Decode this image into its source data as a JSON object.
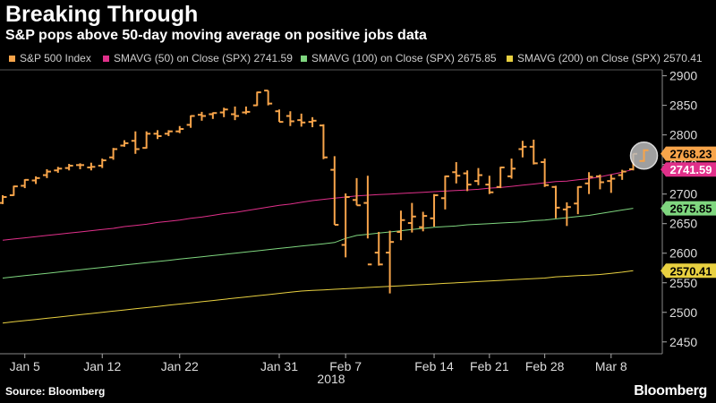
{
  "title": "Breaking Through",
  "subtitle": "S&P pops above 50-day moving average on positive jobs data",
  "source": "Source: Bloomberg",
  "brand": "Bloomberg",
  "legend": [
    {
      "label": "S&P 500 Index",
      "color": "#f7a44a"
    },
    {
      "label": "SMAVG (50) on Close (SPX) 2741.59",
      "color": "#e0308a"
    },
    {
      "label": "SMAVG (100) on Close (SPX) 2675.85",
      "color": "#7fd67f"
    },
    {
      "label": "SMAVG (200) on Close (SPX) 2570.41",
      "color": "#e8d040"
    }
  ],
  "chart_data": {
    "type": "line",
    "title": "Breaking Through",
    "subtitle": "S&P pops above 50-day moving average on positive jobs data",
    "ylim": [
      2430,
      2910
    ],
    "yticks": [
      2450,
      2500,
      2550,
      2600,
      2650,
      2700,
      2750,
      2800,
      2850,
      2900
    ],
    "grid": false,
    "x_tick_labels": [
      "Jan 5",
      "Jan 12",
      "Jan 22",
      "Jan 31",
      "Feb 7",
      "Feb 14",
      "Feb 21",
      "Feb 28",
      "Mar 8"
    ],
    "year_label": "2018",
    "ohlc_series": {
      "name": "S&P 500 Index",
      "color": "#f7a44a",
      "bars": [
        {
          "o": 2685,
          "h": 2698,
          "l": 2683,
          "c": 2695
        },
        {
          "o": 2698,
          "h": 2714,
          "l": 2697,
          "c": 2713
        },
        {
          "o": 2714,
          "h": 2725,
          "l": 2710,
          "c": 2724
        },
        {
          "o": 2723,
          "h": 2730,
          "l": 2717,
          "c": 2727
        },
        {
          "o": 2732,
          "h": 2742,
          "l": 2727,
          "c": 2738
        },
        {
          "o": 2740,
          "h": 2746,
          "l": 2736,
          "c": 2743
        },
        {
          "o": 2744,
          "h": 2751,
          "l": 2740,
          "c": 2748
        },
        {
          "o": 2749,
          "h": 2752,
          "l": 2742,
          "c": 2749
        },
        {
          "o": 2745,
          "h": 2753,
          "l": 2740,
          "c": 2746
        },
        {
          "o": 2748,
          "h": 2760,
          "l": 2744,
          "c": 2757
        },
        {
          "o": 2762,
          "h": 2778,
          "l": 2758,
          "c": 2776
        },
        {
          "o": 2782,
          "h": 2791,
          "l": 2780,
          "c": 2786
        },
        {
          "o": 2790,
          "h": 2806,
          "l": 2768,
          "c": 2776
        },
        {
          "o": 2778,
          "h": 2806,
          "l": 2777,
          "c": 2802
        },
        {
          "o": 2802,
          "h": 2808,
          "l": 2793,
          "c": 2798
        },
        {
          "o": 2802,
          "h": 2808,
          "l": 2798,
          "c": 2806
        },
        {
          "o": 2806,
          "h": 2815,
          "l": 2803,
          "c": 2810
        },
        {
          "o": 2817,
          "h": 2833,
          "l": 2812,
          "c": 2832
        },
        {
          "o": 2834,
          "h": 2839,
          "l": 2824,
          "c": 2832
        },
        {
          "o": 2835,
          "h": 2838,
          "l": 2827,
          "c": 2837
        },
        {
          "o": 2838,
          "h": 2846,
          "l": 2830,
          "c": 2843
        },
        {
          "o": 2835,
          "h": 2848,
          "l": 2825,
          "c": 2832
        },
        {
          "o": 2838,
          "h": 2848,
          "l": 2835,
          "c": 2839
        },
        {
          "o": 2850,
          "h": 2873,
          "l": 2849,
          "c": 2872
        },
        {
          "o": 2875,
          "h": 2875,
          "l": 2850,
          "c": 2853
        },
        {
          "o": 2840,
          "h": 2843,
          "l": 2822,
          "c": 2822
        },
        {
          "o": 2832,
          "h": 2840,
          "l": 2815,
          "c": 2823
        },
        {
          "o": 2825,
          "h": 2836,
          "l": 2814,
          "c": 2821
        },
        {
          "o": 2822,
          "h": 2830,
          "l": 2813,
          "c": 2824
        },
        {
          "o": 2816,
          "h": 2818,
          "l": 2759,
          "c": 2762
        },
        {
          "o": 2741,
          "h": 2764,
          "l": 2648,
          "c": 2648
        },
        {
          "o": 2614,
          "h": 2701,
          "l": 2593,
          "c": 2695
        },
        {
          "o": 2690,
          "h": 2727,
          "l": 2681,
          "c": 2681
        },
        {
          "o": 2685,
          "h": 2731,
          "l": 2625,
          "c": 2581
        },
        {
          "o": 2601,
          "h": 2636,
          "l": 2579,
          "c": 2581
        },
        {
          "o": 2601,
          "h": 2638,
          "l": 2532,
          "c": 2619
        },
        {
          "o": 2636,
          "h": 2672,
          "l": 2622,
          "c": 2656
        },
        {
          "o": 2651,
          "h": 2685,
          "l": 2635,
          "c": 2662
        },
        {
          "o": 2644,
          "h": 2670,
          "l": 2637,
          "c": 2663
        },
        {
          "o": 2659,
          "h": 2700,
          "l": 2645,
          "c": 2698
        },
        {
          "o": 2693,
          "h": 2731,
          "l": 2674,
          "c": 2730
        },
        {
          "o": 2737,
          "h": 2754,
          "l": 2718,
          "c": 2731
        },
        {
          "o": 2735,
          "h": 2740,
          "l": 2705,
          "c": 2716
        },
        {
          "o": 2722,
          "h": 2744,
          "l": 2715,
          "c": 2732
        },
        {
          "o": 2716,
          "h": 2731,
          "l": 2700,
          "c": 2703
        },
        {
          "o": 2712,
          "h": 2746,
          "l": 2710,
          "c": 2745
        },
        {
          "o": 2730,
          "h": 2760,
          "l": 2726,
          "c": 2743
        },
        {
          "o": 2776,
          "h": 2790,
          "l": 2762,
          "c": 2780
        },
        {
          "o": 2780,
          "h": 2792,
          "l": 2750,
          "c": 2752
        },
        {
          "o": 2754,
          "h": 2760,
          "l": 2712,
          "c": 2715
        },
        {
          "o": 2712,
          "h": 2714,
          "l": 2659,
          "c": 2677
        },
        {
          "o": 2674,
          "h": 2686,
          "l": 2646,
          "c": 2678
        },
        {
          "o": 2684,
          "h": 2713,
          "l": 2666,
          "c": 2712
        },
        {
          "o": 2718,
          "h": 2737,
          "l": 2700,
          "c": 2729
        },
        {
          "o": 2730,
          "h": 2733,
          "l": 2708,
          "c": 2720
        },
        {
          "o": 2722,
          "h": 2733,
          "l": 2702,
          "c": 2726
        },
        {
          "o": 2732,
          "h": 2741,
          "l": 2724,
          "c": 2738
        },
        {
          "o": 2742,
          "h": 2768,
          "l": 2740,
          "c": 2768
        }
      ]
    },
    "series": [
      {
        "name": "SMAVG (50) on Close (SPX)",
        "color": "#e0308a",
        "values": [
          2622,
          2624,
          2626,
          2628,
          2630,
          2632,
          2634,
          2636,
          2638,
          2640,
          2642,
          2645,
          2647,
          2649,
          2652,
          2654,
          2656,
          2659,
          2661,
          2664,
          2667,
          2669,
          2672,
          2675,
          2678,
          2681,
          2683,
          2686,
          2689,
          2691,
          2693,
          2695,
          2697,
          2698,
          2699,
          2700,
          2701,
          2702,
          2703,
          2704,
          2705,
          2706,
          2707,
          2708,
          2710,
          2711,
          2713,
          2715,
          2717,
          2719,
          2721,
          2722,
          2724,
          2726,
          2729,
          2733,
          2737,
          2741.59
        ]
      },
      {
        "name": "SMAVG (100) on Close (SPX)",
        "color": "#7fd67f",
        "values": [
          2558,
          2560,
          2562,
          2564,
          2566,
          2568,
          2570,
          2572,
          2574,
          2576,
          2578,
          2580,
          2582,
          2584,
          2586,
          2588,
          2590,
          2592,
          2594,
          2596,
          2598,
          2600,
          2602,
          2604,
          2606,
          2608,
          2610,
          2612,
          2614,
          2616,
          2618,
          2625,
          2630,
          2632,
          2634,
          2636,
          2638,
          2640,
          2642,
          2644,
          2645,
          2646,
          2648,
          2649,
          2650,
          2651,
          2652,
          2653,
          2655,
          2656,
          2658,
          2660,
          2662,
          2664,
          2667,
          2670,
          2673,
          2675.85
        ]
      },
      {
        "name": "SMAVG (200) on Close (SPX)",
        "color": "#e8d040",
        "values": [
          2482,
          2484,
          2486,
          2488,
          2490,
          2492,
          2494,
          2496,
          2498,
          2500,
          2502,
          2504,
          2506,
          2508,
          2510,
          2512,
          2514,
          2516,
          2518,
          2520,
          2522,
          2524,
          2526,
          2528,
          2530,
          2532,
          2534,
          2536,
          2537,
          2538,
          2539,
          2540,
          2541,
          2542,
          2543,
          2544,
          2545,
          2546,
          2547,
          2548,
          2549,
          2550,
          2551,
          2552,
          2553,
          2554,
          2555,
          2556,
          2557,
          2558,
          2560,
          2561,
          2562,
          2563,
          2564,
          2566,
          2568,
          2570.41
        ]
      }
    ],
    "last_value_tags": [
      {
        "label": "2768.23",
        "value": 2768.23,
        "bg": "#f7a44a",
        "fg": "#000"
      },
      {
        "label": "2741.59",
        "value": 2741.59,
        "bg": "#e0308a",
        "fg": "#fff"
      },
      {
        "label": "2675.85",
        "value": 2675.85,
        "bg": "#7fd67f",
        "fg": "#000"
      },
      {
        "label": "2570.41",
        "value": 2570.41,
        "bg": "#e8d040",
        "fg": "#000"
      }
    ]
  }
}
